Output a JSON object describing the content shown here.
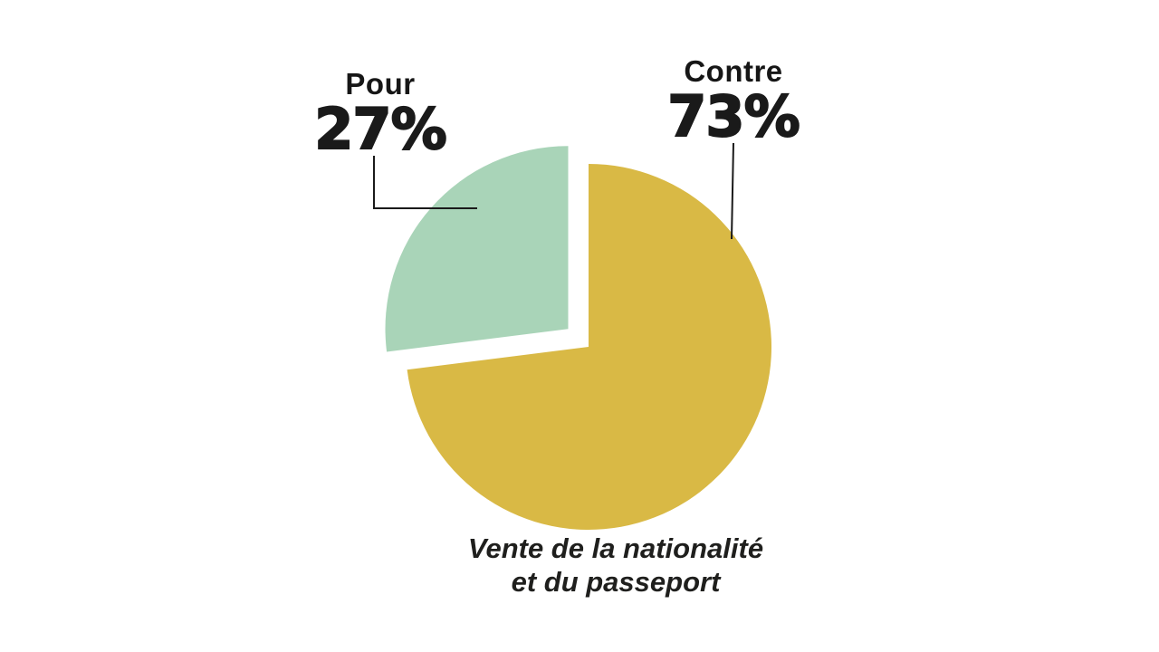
{
  "chart_data": {
    "type": "pie",
    "title": "Vente de la nationalité et du passeport",
    "caption_lines": [
      "Vente de la nationalité",
      "et du passeport"
    ],
    "slices": [
      {
        "label": "Pour",
        "value": 27,
        "display": "27%",
        "color": "#a9d4b8",
        "exploded": true
      },
      {
        "label": "Contre",
        "value": 73,
        "display": "73%",
        "color": "#d9b945",
        "exploded": false
      }
    ],
    "start_angle_deg": 90,
    "direction": "counterclockwise",
    "legend_position": "labels-above-with-leader-lines",
    "grid": false,
    "background_color": "#ffffff",
    "text_color": "#1a1a1a",
    "leader_line_color": "#1a1a1a"
  }
}
